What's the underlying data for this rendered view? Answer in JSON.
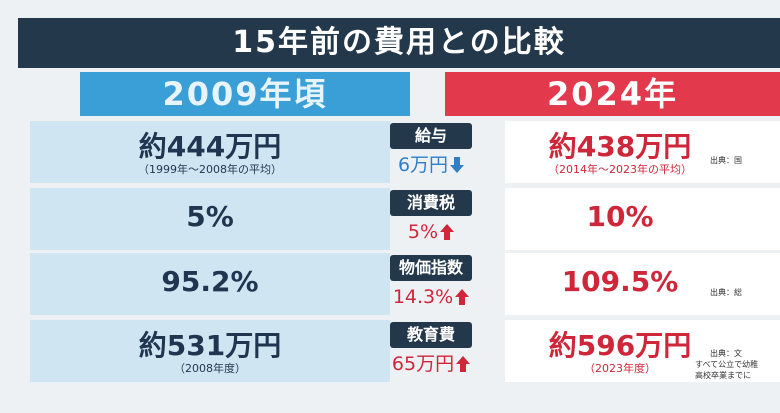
{
  "header": {
    "title": "15年前の費用との比較",
    "left_column": "2009年頃",
    "right_column": "2024年"
  },
  "table": {
    "rows": [
      {
        "label": "給与",
        "left": "約444万円",
        "left_note": "（1999年～2008年の平均）",
        "change": "6万円",
        "direction": "down",
        "right": "約438万円",
        "right_note": "（2014年～2023年の平均）",
        "source": [
          "出典：国"
        ]
      },
      {
        "label": "消費税",
        "left": "5%",
        "change": "5%",
        "direction": "up",
        "right": "10%"
      },
      {
        "label": "物価指数",
        "left": "95.2%",
        "change": "14.3%",
        "direction": "up",
        "right": "109.5%",
        "source": [
          "出典：総"
        ]
      },
      {
        "label": "教育費",
        "left": "約531万円",
        "left_note": "（2008年度）",
        "change": "65万円",
        "direction": "up",
        "right": "約596万円",
        "right_note": "（2023年度）",
        "source": [
          "出典：文",
          "すべて公立で幼稚",
          "高校卒業までに"
        ]
      }
    ]
  }
}
